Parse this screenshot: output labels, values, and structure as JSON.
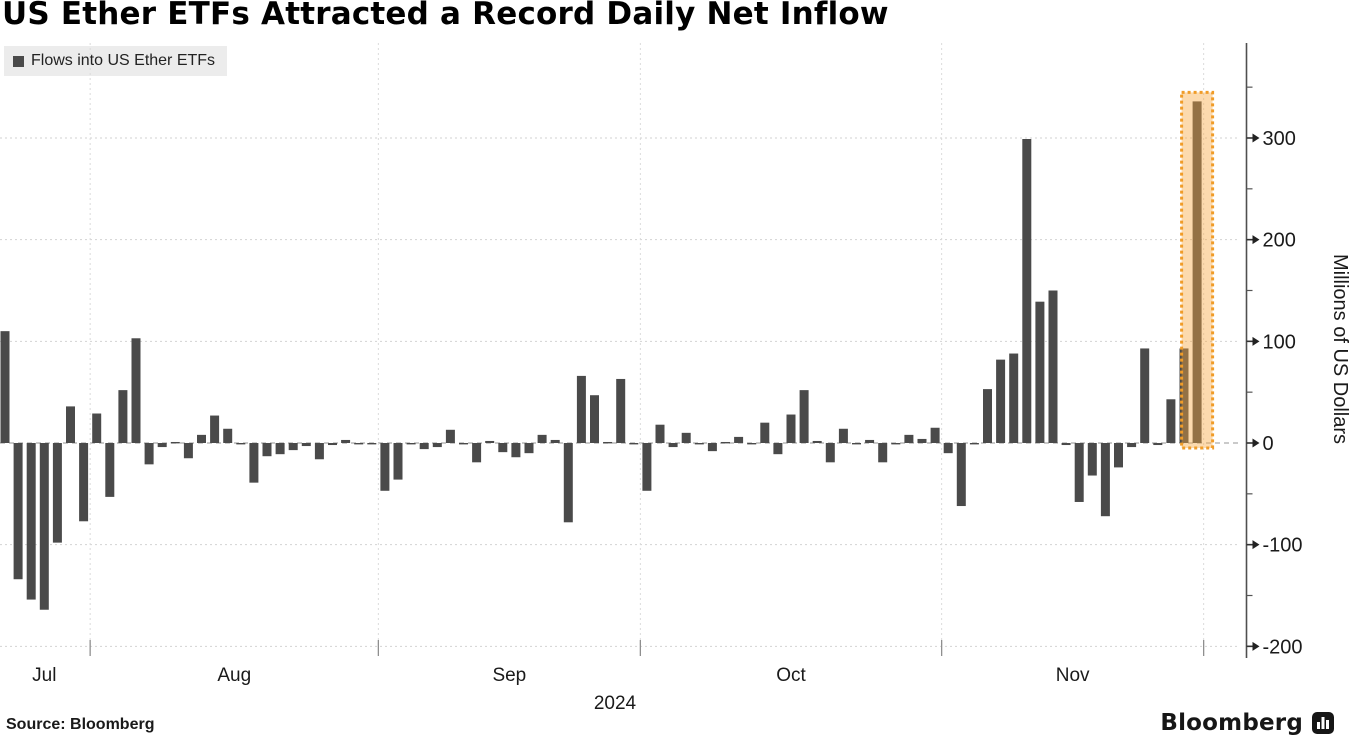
{
  "title": "US Ether ETFs Attracted a Record Daily Net Inflow",
  "legend": {
    "label": "Flows into US Ether ETFs",
    "swatch_color": "#4a4a4a"
  },
  "footer": {
    "source": "Source: Bloomberg",
    "brand": "Bloomberg"
  },
  "chart_data": {
    "type": "bar",
    "title": "US Ether ETFs Attracted a Record Daily Net Inflow",
    "series_name": "Flows into US Ether ETFs",
    "ylabel": "Millions of US Dollars",
    "year_label": "2024",
    "months": [
      {
        "label": "Jul",
        "trading_days": 7
      },
      {
        "label": "Aug",
        "trading_days": 22
      },
      {
        "label": "Sep",
        "trading_days": 20
      },
      {
        "label": "Oct",
        "trading_days": 23
      },
      {
        "label": "Nov",
        "trading_days": 20
      }
    ],
    "y_ticks_major": [
      -200,
      -100,
      0,
      100,
      200,
      300
    ],
    "y_ticks_minor": [
      -150,
      -50,
      50,
      150,
      250,
      350
    ],
    "ylim": [
      -212,
      392
    ],
    "grid": true,
    "legend_position": "top-left",
    "bar_color": "#4a4a4a",
    "values": [
      110,
      -134,
      -154,
      -164,
      -98,
      36,
      -77,
      29,
      -53,
      52,
      103,
      -21,
      -4,
      1,
      -15,
      8,
      27,
      14,
      -1,
      -39,
      -13,
      -11,
      -7,
      -3,
      -16,
      -2,
      3,
      -1,
      -1,
      -47,
      -36,
      -1,
      -6,
      -4,
      13,
      -1,
      -19,
      2,
      -9,
      -14,
      -10,
      8,
      3,
      -78,
      66,
      47,
      1,
      63,
      -1,
      -47,
      18,
      -4,
      10,
      -1,
      -8,
      1,
      6,
      -1,
      20,
      -11,
      28,
      52,
      2,
      -19,
      14,
      -1,
      3,
      -19,
      -1,
      8,
      4,
      15,
      -10,
      -62,
      -1,
      53,
      82,
      88,
      299,
      139,
      150,
      -2,
      -58,
      -32,
      -72,
      -24,
      -4,
      93,
      -2,
      43,
      93,
      336
    ],
    "highlight": {
      "index": 91,
      "value": 336,
      "fill": "rgba(247,166,61,0.42)",
      "border": "#f09c28"
    }
  }
}
